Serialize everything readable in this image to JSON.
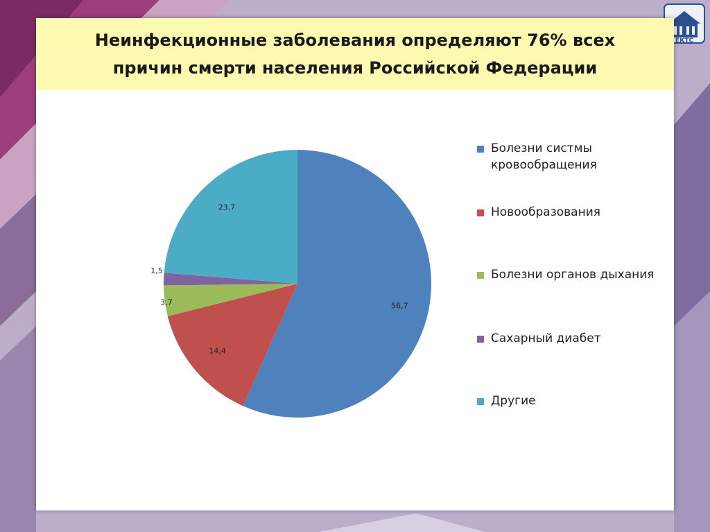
{
  "slide": {
    "title_line1": "Неинфекционные заболевания определяют 76% всех",
    "title_line2": "причин смерти населения Российской Федерации"
  },
  "logo": {
    "text": "ЕКТС",
    "icon": "university-crest-icon"
  },
  "colors": {
    "title_band": "#fcf9b0",
    "slide_bg": "#ffffff",
    "page_bg": "#b9a9c8"
  },
  "chart_data": {
    "type": "pie",
    "title": "",
    "start_angle_deg": 0,
    "direction": "clockwise",
    "legend_position": "right",
    "slices": [
      {
        "label": "Болезни систмы кровообращения",
        "value": 56.7,
        "display": "56,7",
        "color": "#4f81bd"
      },
      {
        "label": "Новообразования",
        "value": 14.4,
        "display": "14,4",
        "color": "#c0504d"
      },
      {
        "label": "Болезни органов дыхания",
        "value": 3.7,
        "display": "3,7",
        "color": "#9bbb59"
      },
      {
        "label": "Сахарный диабет",
        "value": 1.5,
        "display": "1,5",
        "color": "#8064a2"
      },
      {
        "label": "Другие",
        "value": 23.7,
        "display": "23,7",
        "color": "#4bacc6"
      }
    ]
  }
}
